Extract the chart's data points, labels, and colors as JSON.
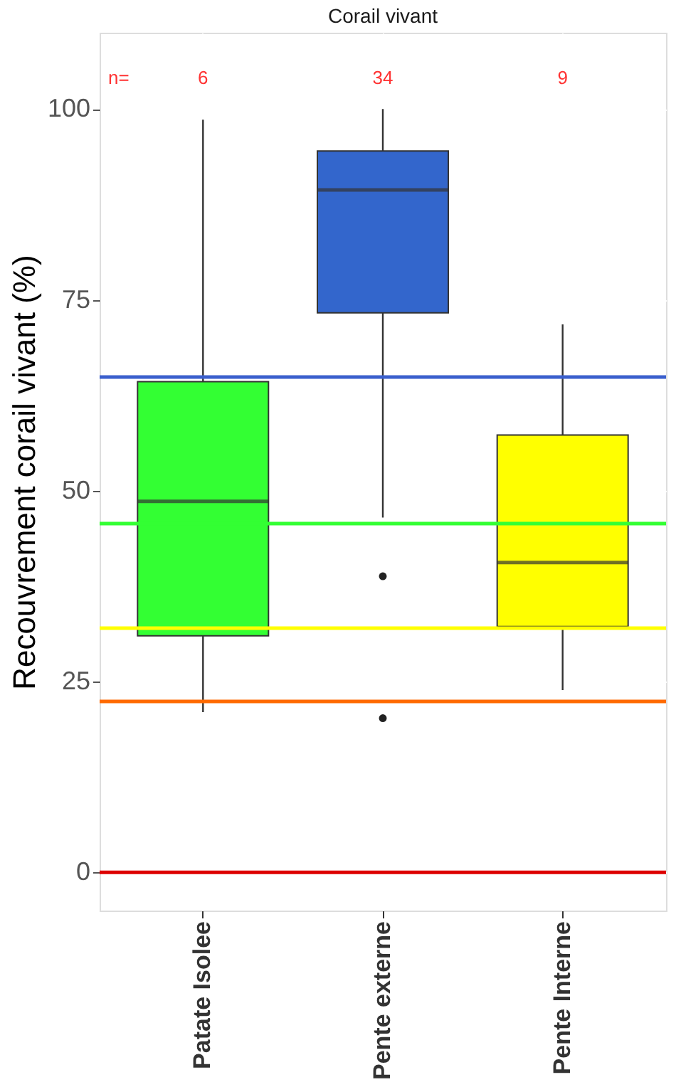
{
  "chart_data": {
    "type": "box",
    "title": "Corail vivant",
    "ylabel": "Recouvrement corail vivant (%)",
    "categories": [
      "Patate Isolee",
      "Pente externe",
      "Pente Interne"
    ],
    "colors": [
      "#33ff33",
      "#3366cc",
      "#ffff00"
    ],
    "boxes": [
      {
        "low": 21,
        "q1": 31,
        "median": 48.6,
        "q3": 64.3,
        "high": 98.6
      },
      {
        "low": 46.5,
        "q1": 73.3,
        "median": 89.4,
        "q3": 94.5,
        "high": 100,
        "outliers": [
          38.8,
          20.2
        ]
      },
      {
        "low": 23.9,
        "q1": 32.2,
        "median": 40.6,
        "q3": 57.3,
        "high": 71.8
      }
    ],
    "ylim": [
      -5,
      110
    ],
    "yticks": [
      0,
      25,
      50,
      75,
      100
    ],
    "grid": true,
    "ref_lines": [
      {
        "axis": "y",
        "value": 64.9,
        "color": "#3a5fcd"
      },
      {
        "axis": "y",
        "value": 45.7,
        "color": "#33ff33"
      },
      {
        "axis": "y",
        "value": 32,
        "color": "#ffff00"
      },
      {
        "axis": "y",
        "value": 22.4,
        "color": "#ff6a00"
      },
      {
        "axis": "y",
        "value": 0,
        "color": "#dd0000"
      }
    ],
    "annotations": [
      "n=",
      "6",
      "34",
      "9"
    ]
  }
}
